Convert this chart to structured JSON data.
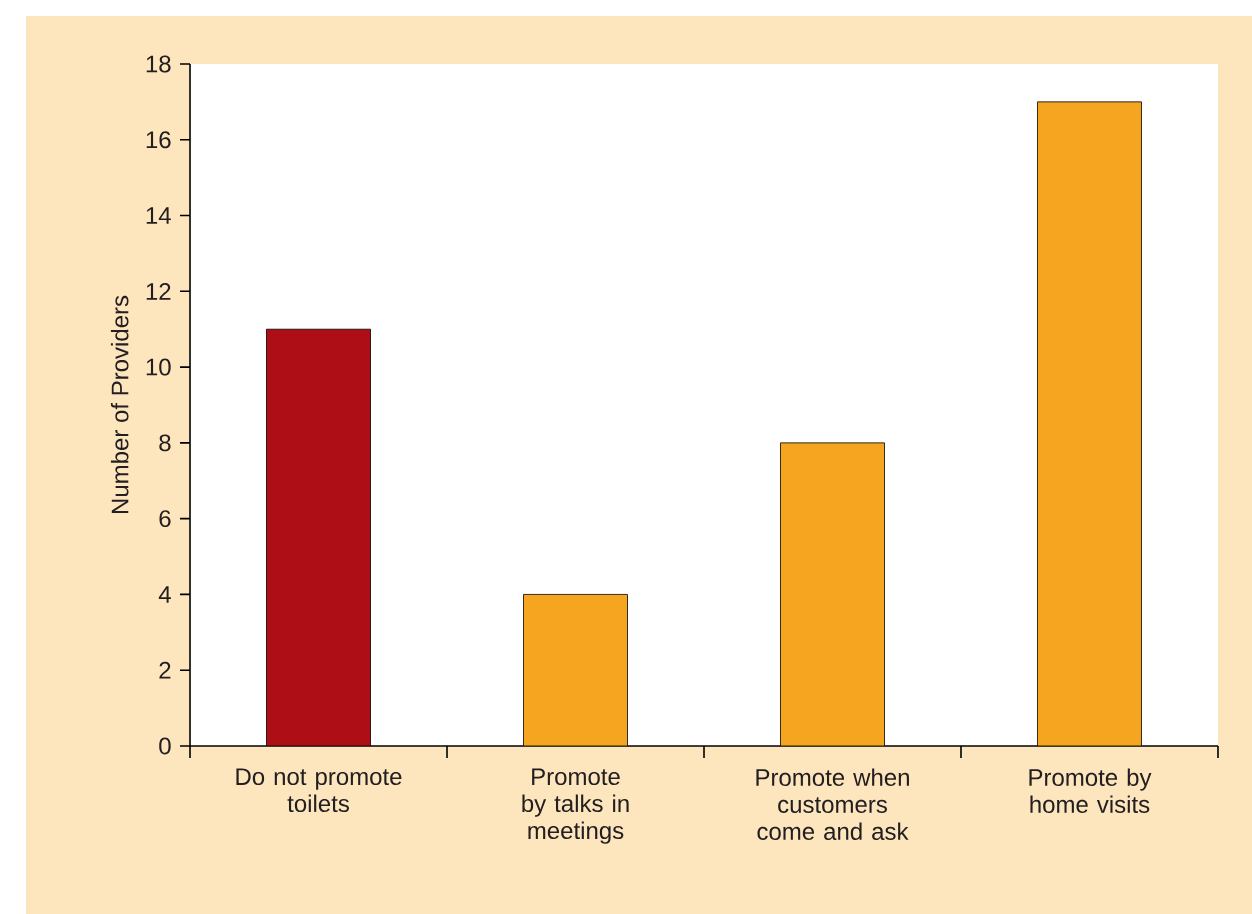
{
  "chart_data": {
    "type": "bar",
    "categories": [
      "Do not promote toilets",
      "Promote by talks in meetings",
      "Promote when customers come and ask",
      "Promote by home visits"
    ],
    "values": [
      11,
      4,
      8,
      17
    ],
    "colors": [
      "#ae0e16",
      "#f5a51f",
      "#f5a51f",
      "#f5a51f"
    ],
    "ylabel": "Number of Providers",
    "ylim": [
      0,
      18
    ],
    "yticks": [
      0,
      2,
      4,
      6,
      8,
      10,
      12,
      14,
      16,
      18
    ]
  }
}
